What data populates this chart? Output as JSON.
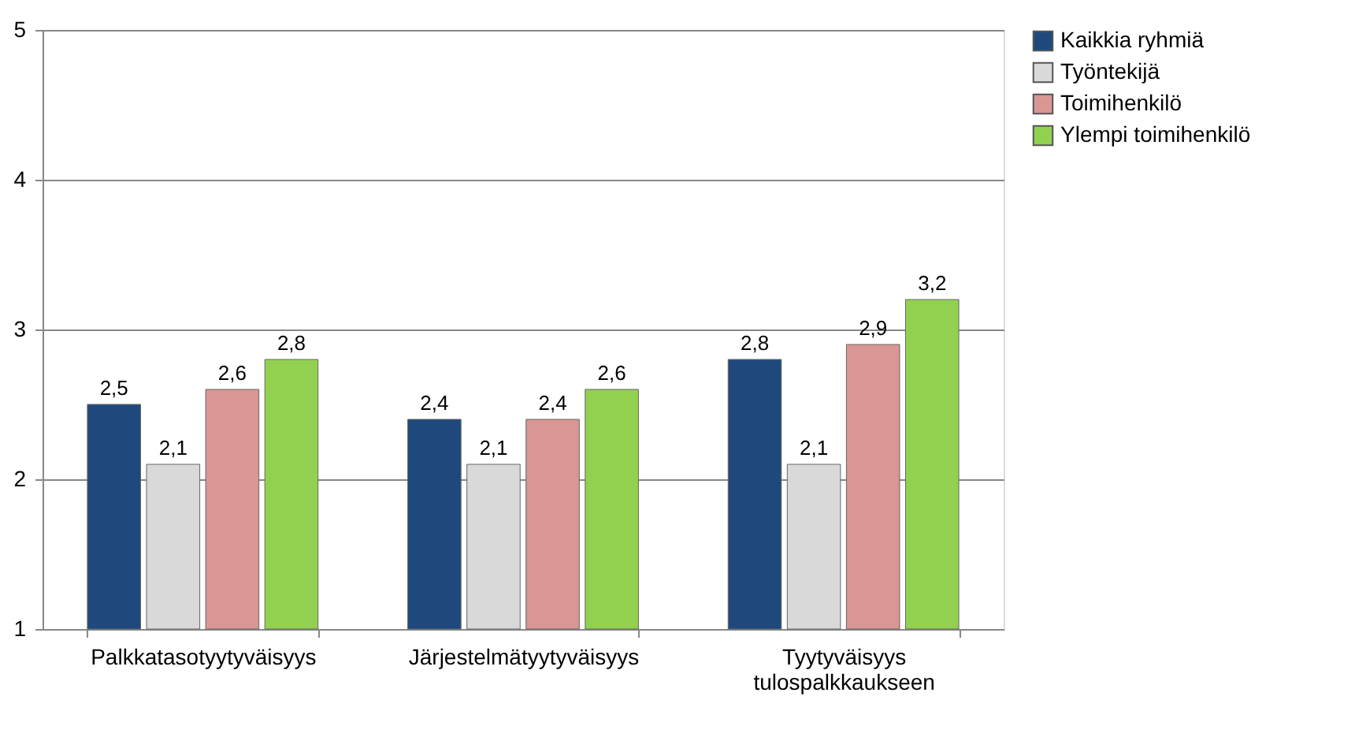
{
  "chart_data": {
    "type": "bar",
    "categories": [
      "Palkkatasotyytyväisyys",
      "Järjestelmätyytyväisyys",
      "Tyytyväisyys tulospalkkaukseen"
    ],
    "series": [
      {
        "name": "Kaikkia ryhmiä",
        "color": "#1f497d",
        "values": [
          2.5,
          2.4,
          2.8
        ],
        "value_labels": [
          "2,5",
          "2,4",
          "2,8"
        ]
      },
      {
        "name": "Työntekijä",
        "color": "#d9d9d9",
        "values": [
          2.1,
          2.1,
          2.1
        ],
        "value_labels": [
          "2,1",
          "2,1",
          "2,1"
        ]
      },
      {
        "name": "Toimihenkilö",
        "color": "#d99694",
        "values": [
          2.6,
          2.4,
          2.9
        ],
        "value_labels": [
          "2,6",
          "2,4",
          "2,9"
        ]
      },
      {
        "name": "Ylempi toimihenkilö",
        "color": "#92d050",
        "values": [
          2.8,
          2.6,
          3.2
        ],
        "value_labels": [
          "2,8",
          "2,6",
          "3,2"
        ]
      }
    ],
    "ylim": [
      1,
      5
    ],
    "yticks": [
      1,
      2,
      3,
      4,
      5
    ],
    "grid": "y",
    "legend": "right"
  }
}
